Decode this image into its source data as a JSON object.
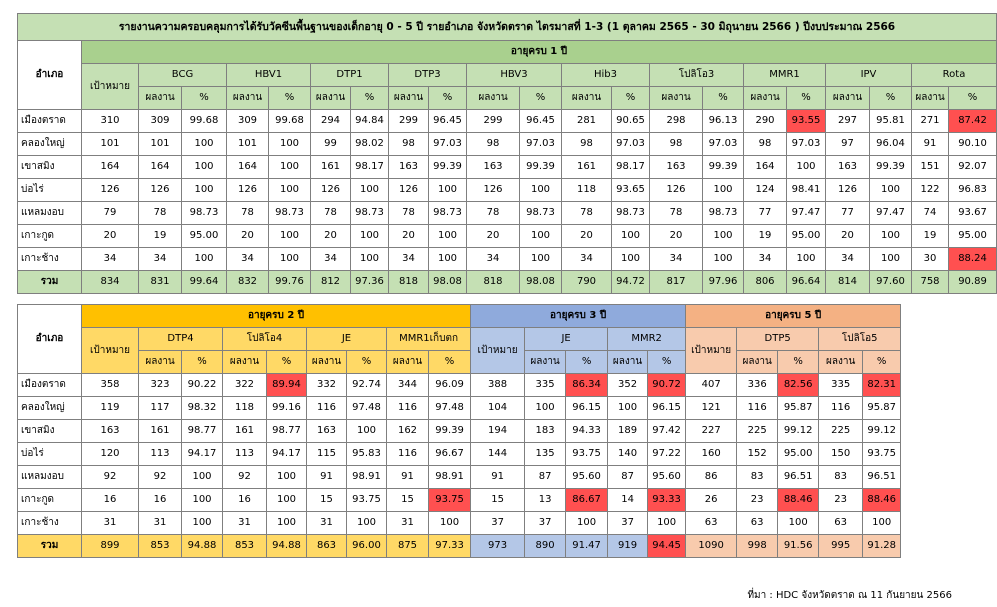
{
  "title": "รายงานความครอบคลุมการได้รับวัคซีนพื้นฐานของเด็กอายุ 0 - 5 ปี รายอำเภอ จังหวัดตราด ไตรมาสที่ 1-3 (1 ตุลาคม 2565 - 30 มิถุนายน 2566 ) ปีงบประมาณ 2566",
  "district_header": "อำเภอ",
  "target_header": "เป้าหมาย",
  "result_header": "ผลงาน",
  "pct_header": "%",
  "age1": {
    "label": "อายุครบ 1 ปี",
    "vaccines": [
      "BCG",
      "HBV1",
      "DTP1",
      "DTP3",
      "HBV3",
      "Hib3",
      "โปลิโอ3",
      "MMR1",
      "IPV",
      "Rota"
    ],
    "rows": [
      {
        "district": "เมืองตราด",
        "target": "310",
        "cells": [
          [
            "309",
            "99.68"
          ],
          [
            "309",
            "99.68"
          ],
          [
            "294",
            "94.84"
          ],
          [
            "299",
            "96.45"
          ],
          [
            "299",
            "96.45"
          ],
          [
            "281",
            "90.65"
          ],
          [
            "298",
            "96.13"
          ],
          [
            "290",
            "93.55"
          ],
          [
            "297",
            "95.81"
          ],
          [
            "271",
            "87.42"
          ]
        ]
      },
      {
        "district": "คลองใหญ่",
        "target": "101",
        "cells": [
          [
            "101",
            "100"
          ],
          [
            "101",
            "100"
          ],
          [
            "99",
            "98.02"
          ],
          [
            "98",
            "97.03"
          ],
          [
            "98",
            "97.03"
          ],
          [
            "98",
            "97.03"
          ],
          [
            "98",
            "97.03"
          ],
          [
            "98",
            "97.03"
          ],
          [
            "97",
            "96.04"
          ],
          [
            "91",
            "90.10"
          ]
        ]
      },
      {
        "district": "เขาสมิง",
        "target": "164",
        "cells": [
          [
            "164",
            "100"
          ],
          [
            "164",
            "100"
          ],
          [
            "161",
            "98.17"
          ],
          [
            "163",
            "99.39"
          ],
          [
            "163",
            "99.39"
          ],
          [
            "161",
            "98.17"
          ],
          [
            "163",
            "99.39"
          ],
          [
            "164",
            "100"
          ],
          [
            "163",
            "99.39"
          ],
          [
            "151",
            "92.07"
          ]
        ]
      },
      {
        "district": "บ่อไร่",
        "target": "126",
        "cells": [
          [
            "126",
            "100"
          ],
          [
            "126",
            "100"
          ],
          [
            "126",
            "100"
          ],
          [
            "126",
            "100"
          ],
          [
            "126",
            "100"
          ],
          [
            "118",
            "93.65"
          ],
          [
            "126",
            "100"
          ],
          [
            "124",
            "98.41"
          ],
          [
            "126",
            "100"
          ],
          [
            "122",
            "96.83"
          ]
        ]
      },
      {
        "district": "แหลมงอบ",
        "target": "79",
        "cells": [
          [
            "78",
            "98.73"
          ],
          [
            "78",
            "98.73"
          ],
          [
            "78",
            "98.73"
          ],
          [
            "78",
            "98.73"
          ],
          [
            "78",
            "98.73"
          ],
          [
            "78",
            "98.73"
          ],
          [
            "78",
            "98.73"
          ],
          [
            "77",
            "97.47"
          ],
          [
            "77",
            "97.47"
          ],
          [
            "74",
            "93.67"
          ]
        ]
      },
      {
        "district": "เกาะกูด",
        "target": "20",
        "cells": [
          [
            "19",
            "95.00"
          ],
          [
            "20",
            "100"
          ],
          [
            "20",
            "100"
          ],
          [
            "20",
            "100"
          ],
          [
            "20",
            "100"
          ],
          [
            "20",
            "100"
          ],
          [
            "20",
            "100"
          ],
          [
            "19",
            "95.00"
          ],
          [
            "20",
            "100"
          ],
          [
            "19",
            "95.00"
          ]
        ]
      },
      {
        "district": "เกาะช้าง",
        "target": "34",
        "cells": [
          [
            "34",
            "100"
          ],
          [
            "34",
            "100"
          ],
          [
            "34",
            "100"
          ],
          [
            "34",
            "100"
          ],
          [
            "34",
            "100"
          ],
          [
            "34",
            "100"
          ],
          [
            "34",
            "100"
          ],
          [
            "34",
            "100"
          ],
          [
            "34",
            "100"
          ],
          [
            "30",
            "88.24"
          ]
        ]
      }
    ],
    "total": {
      "district": "รวม",
      "target": "834",
      "cells": [
        [
          "831",
          "99.64"
        ],
        [
          "832",
          "99.76"
        ],
        [
          "812",
          "97.36"
        ],
        [
          "818",
          "98.08"
        ],
        [
          "818",
          "98.08"
        ],
        [
          "790",
          "94.72"
        ],
        [
          "817",
          "97.96"
        ],
        [
          "806",
          "96.64"
        ],
        [
          "814",
          "97.60"
        ],
        [
          "758",
          "90.89"
        ]
      ]
    },
    "highlight": [
      [
        0,
        7
      ],
      [
        0,
        9
      ],
      [
        6,
        9
      ]
    ]
  },
  "age2": {
    "label": "อายุครบ 2 ปี",
    "vaccines": [
      "DTP4",
      "โปลิโอ4",
      "JE",
      "MMR1เก็บตก"
    ]
  },
  "age3": {
    "label": "อายุครบ 3 ปี",
    "vaccines": [
      "JE",
      "MMR2"
    ]
  },
  "age5": {
    "label": "อายุครบ 5 ปี",
    "vaccines": [
      "DTP5",
      "โปลิโอ5"
    ]
  },
  "bottom_rows": [
    {
      "district": "เมืองตราด",
      "t2": "358",
      "a2": [
        [
          "323",
          "90.22"
        ],
        [
          "322",
          "89.94"
        ],
        [
          "332",
          "92.74"
        ],
        [
          "344",
          "96.09"
        ]
      ],
      "t3": "388",
      "a3": [
        [
          "335",
          "86.34"
        ],
        [
          "352",
          "90.72"
        ]
      ],
      "t5": "407",
      "a5": [
        [
          "336",
          "82.56"
        ],
        [
          "335",
          "82.31"
        ]
      ]
    },
    {
      "district": "คลองใหญ่",
      "t2": "119",
      "a2": [
        [
          "117",
          "98.32"
        ],
        [
          "118",
          "99.16"
        ],
        [
          "116",
          "97.48"
        ],
        [
          "116",
          "97.48"
        ]
      ],
      "t3": "104",
      "a3": [
        [
          "100",
          "96.15"
        ],
        [
          "100",
          "96.15"
        ]
      ],
      "t5": "121",
      "a5": [
        [
          "116",
          "95.87"
        ],
        [
          "116",
          "95.87"
        ]
      ]
    },
    {
      "district": "เขาสมิง",
      "t2": "163",
      "a2": [
        [
          "161",
          "98.77"
        ],
        [
          "161",
          "98.77"
        ],
        [
          "163",
          "100"
        ],
        [
          "162",
          "99.39"
        ]
      ],
      "t3": "194",
      "a3": [
        [
          "183",
          "94.33"
        ],
        [
          "189",
          "97.42"
        ]
      ],
      "t5": "227",
      "a5": [
        [
          "225",
          "99.12"
        ],
        [
          "225",
          "99.12"
        ]
      ]
    },
    {
      "district": "บ่อไร่",
      "t2": "120",
      "a2": [
        [
          "113",
          "94.17"
        ],
        [
          "113",
          "94.17"
        ],
        [
          "115",
          "95.83"
        ],
        [
          "116",
          "96.67"
        ]
      ],
      "t3": "144",
      "a3": [
        [
          "135",
          "93.75"
        ],
        [
          "140",
          "97.22"
        ]
      ],
      "t5": "160",
      "a5": [
        [
          "152",
          "95.00"
        ],
        [
          "150",
          "93.75"
        ]
      ]
    },
    {
      "district": "แหลมงอบ",
      "t2": "92",
      "a2": [
        [
          "92",
          "100"
        ],
        [
          "92",
          "100"
        ],
        [
          "91",
          "98.91"
        ],
        [
          "91",
          "98.91"
        ]
      ],
      "t3": "91",
      "a3": [
        [
          "87",
          "95.60"
        ],
        [
          "87",
          "95.60"
        ]
      ],
      "t5": "86",
      "a5": [
        [
          "83",
          "96.51"
        ],
        [
          "83",
          "96.51"
        ]
      ]
    },
    {
      "district": "เกาะกูด",
      "t2": "16",
      "a2": [
        [
          "16",
          "100"
        ],
        [
          "16",
          "100"
        ],
        [
          "15",
          "93.75"
        ],
        [
          "15",
          "93.75"
        ]
      ],
      "t3": "15",
      "a3": [
        [
          "13",
          "86.67"
        ],
        [
          "14",
          "93.33"
        ]
      ],
      "t5": "26",
      "a5": [
        [
          "23",
          "88.46"
        ],
        [
          "23",
          "88.46"
        ]
      ]
    },
    {
      "district": "เกาะช้าง",
      "t2": "31",
      "a2": [
        [
          "31",
          "100"
        ],
        [
          "31",
          "100"
        ],
        [
          "31",
          "100"
        ],
        [
          "31",
          "100"
        ]
      ],
      "t3": "37",
      "a3": [
        [
          "37",
          "100"
        ],
        [
          "37",
          "100"
        ]
      ],
      "t5": "63",
      "a5": [
        [
          "63",
          "100"
        ],
        [
          "63",
          "100"
        ]
      ]
    }
  ],
  "bottom_total": {
    "district": "รวม",
    "t2": "899",
    "a2": [
      [
        "853",
        "94.88"
      ],
      [
        "853",
        "94.88"
      ],
      [
        "863",
        "96.00"
      ],
      [
        "875",
        "97.33"
      ]
    ],
    "t3": "973",
    "a3": [
      [
        "890",
        "91.47"
      ],
      [
        "919",
        "94.45"
      ]
    ],
    "t5": "1090",
    "a5": [
      [
        "998",
        "91.56"
      ],
      [
        "995",
        "91.28"
      ]
    ]
  },
  "bottom_highlight": {
    "a2": [
      [
        0,
        1
      ],
      [
        5,
        3
      ]
    ],
    "a3": [
      [
        0,
        0
      ],
      [
        0,
        1
      ],
      [
        5,
        0
      ],
      [
        5,
        1
      ],
      [
        7,
        1
      ]
    ],
    "a5": [
      [
        0,
        0
      ],
      [
        0,
        1
      ],
      [
        5,
        0
      ],
      [
        5,
        1
      ]
    ]
  },
  "source_note": "ที่มา : HDC จังหวัดตราด ณ 11 กันยายน 2566",
  "colors": {
    "highlight_red": "#ff5050",
    "green": "#c5e0b4",
    "yellow": "#ffd966",
    "blue": "#b4c7e7",
    "peach": "#f8cbad"
  }
}
